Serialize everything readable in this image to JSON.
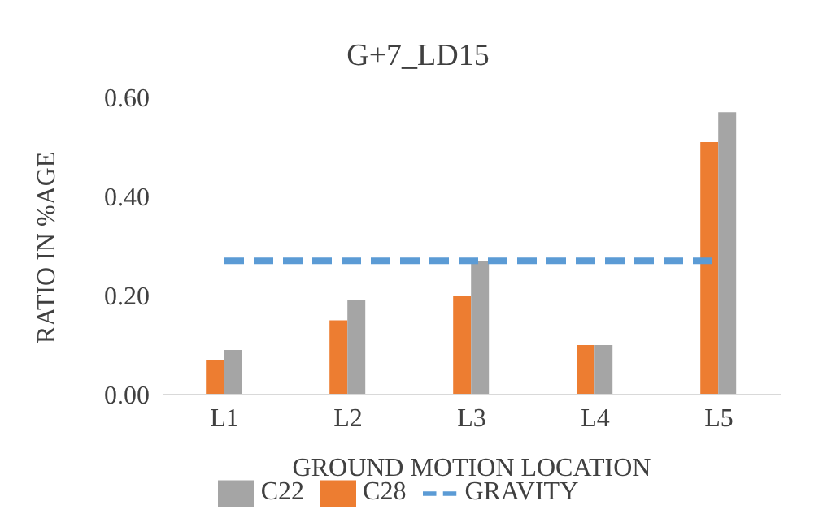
{
  "chart_data": {
    "type": "bar",
    "title": "G+7_LD15",
    "xlabel": "GROUND MOTION LOCATION",
    "ylabel": "RATIO IN %AGE",
    "categories": [
      "L1",
      "L2",
      "L3",
      "L4",
      "L5"
    ],
    "series": [
      {
        "name": "C28",
        "color": "#ed7d31",
        "values": [
          0.07,
          0.15,
          0.2,
          0.1,
          0.51
        ]
      },
      {
        "name": "C22",
        "color": "#a5a5a5",
        "values": [
          0.09,
          0.19,
          0.27,
          0.1,
          0.57
        ]
      },
      {
        "name": "GRAVITY",
        "type": "line",
        "color": "#5b9bd5",
        "values": [
          0.27,
          0.27,
          0.27,
          0.27,
          0.27
        ],
        "line_style": "dashed",
        "marker": "none"
      }
    ],
    "ylim": [
      0,
      0.6
    ],
    "yticks": [
      {
        "value": 0,
        "label": "0.00"
      },
      {
        "value": 0.2,
        "label": "0.20"
      },
      {
        "value": 0.4,
        "label": "0.40"
      },
      {
        "value": 0.6,
        "label": "0.60"
      }
    ],
    "grid": false,
    "legend": "bottom"
  }
}
